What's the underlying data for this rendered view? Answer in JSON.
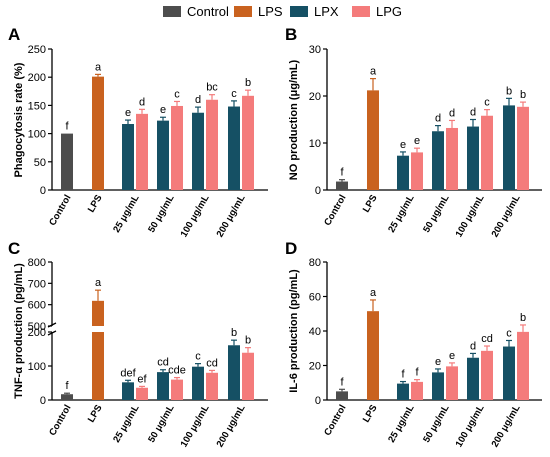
{
  "legend": [
    {
      "name": "Control",
      "color": "#4d4d4d"
    },
    {
      "name": "LPS",
      "color": "#c9621f"
    },
    {
      "name": "LPX",
      "color": "#155064"
    },
    {
      "name": "LPG",
      "color": "#f47b7b"
    }
  ],
  "chart_data": [
    {
      "panel": "A",
      "type": "bar",
      "ylabel": "Phagocytosis rate (%)",
      "ylim": [
        0,
        250
      ],
      "yticks": [
        0,
        50,
        100,
        150,
        200,
        250
      ],
      "categories": [
        "Control",
        "LPS",
        "25 μg/mL",
        "50 μg/mL",
        "100 μg/mL",
        "200 μg/mL"
      ],
      "groups": [
        [
          {
            "series": "Control",
            "value": 100,
            "err": 0,
            "sig": "f"
          }
        ],
        [
          {
            "series": "LPS",
            "value": 201,
            "err": 4,
            "sig": "a"
          }
        ],
        [
          {
            "series": "LPX",
            "value": 117,
            "err": 7,
            "sig": "e"
          },
          {
            "series": "LPG",
            "value": 135,
            "err": 8,
            "sig": "d"
          }
        ],
        [
          {
            "series": "LPX",
            "value": 123,
            "err": 6,
            "sig": "e"
          },
          {
            "series": "LPG",
            "value": 149,
            "err": 8,
            "sig": "c"
          }
        ],
        [
          {
            "series": "LPX",
            "value": 137,
            "err": 10,
            "sig": "d"
          },
          {
            "series": "LPG",
            "value": 160,
            "err": 9,
            "sig": "bc"
          }
        ],
        [
          {
            "series": "LPX",
            "value": 148,
            "err": 10,
            "sig": "c"
          },
          {
            "series": "LPG",
            "value": 167,
            "err": 10,
            "sig": "b"
          }
        ]
      ]
    },
    {
      "panel": "B",
      "type": "bar",
      "ylabel": "NO production (μg/mL)",
      "ylim": [
        0,
        30
      ],
      "yticks": [
        0,
        10,
        20,
        30
      ],
      "categories": [
        "Control",
        "LPS",
        "25 μg/mL",
        "50 μg/mL",
        "100 μg/mL",
        "200 μg/mL"
      ],
      "groups": [
        [
          {
            "series": "Control",
            "value": 1.8,
            "err": 0.4,
            "sig": "f"
          }
        ],
        [
          {
            "series": "LPS",
            "value": 21.2,
            "err": 2.5,
            "sig": "a"
          }
        ],
        [
          {
            "series": "LPX",
            "value": 7.3,
            "err": 0.8,
            "sig": "e"
          },
          {
            "series": "LPG",
            "value": 8.0,
            "err": 0.9,
            "sig": "e"
          }
        ],
        [
          {
            "series": "LPX",
            "value": 12.5,
            "err": 1.2,
            "sig": "d"
          },
          {
            "series": "LPG",
            "value": 13.2,
            "err": 1.6,
            "sig": "d"
          }
        ],
        [
          {
            "series": "LPX",
            "value": 13.5,
            "err": 1.5,
            "sig": "d"
          },
          {
            "series": "LPG",
            "value": 15.8,
            "err": 1.3,
            "sig": "c"
          }
        ],
        [
          {
            "series": "LPX",
            "value": 18.0,
            "err": 1.5,
            "sig": "b"
          },
          {
            "series": "LPG",
            "value": 17.7,
            "err": 1.0,
            "sig": "b"
          }
        ]
      ]
    },
    {
      "panel": "C",
      "type": "bar",
      "ylabel": "TNF-α production (pg/mL)",
      "broken_axis": true,
      "ylim_lower": [
        0,
        200
      ],
      "yticks_lower": [
        0,
        100,
        200
      ],
      "ylim_upper": [
        500,
        800
      ],
      "yticks_upper": [
        500,
        600,
        700,
        800
      ],
      "categories": [
        "Control",
        "LPS",
        "25 μg/mL",
        "50 μg/mL",
        "100 μg/mL",
        "200 μg/mL"
      ],
      "groups": [
        [
          {
            "series": "Control",
            "value": 17,
            "err": 3,
            "sig": "f"
          }
        ],
        [
          {
            "series": "LPS",
            "value": 618,
            "err": 50,
            "sig": "a"
          }
        ],
        [
          {
            "series": "LPX",
            "value": 52,
            "err": 6,
            "sig": "def"
          },
          {
            "series": "LPG",
            "value": 36,
            "err": 4,
            "sig": "ef"
          }
        ],
        [
          {
            "series": "LPX",
            "value": 82,
            "err": 7,
            "sig": "cd"
          },
          {
            "series": "LPG",
            "value": 60,
            "err": 6,
            "sig": "cde"
          }
        ],
        [
          {
            "series": "LPX",
            "value": 98,
            "err": 9,
            "sig": "c"
          },
          {
            "series": "LPG",
            "value": 80,
            "err": 7,
            "sig": "cd"
          }
        ],
        [
          {
            "series": "LPX",
            "value": 161,
            "err": 15,
            "sig": "b"
          },
          {
            "series": "LPG",
            "value": 139,
            "err": 15,
            "sig": "b"
          }
        ]
      ]
    },
    {
      "panel": "D",
      "type": "bar",
      "ylabel": "IL-6 production (pg/mL)",
      "ylim": [
        0,
        80
      ],
      "yticks": [
        0,
        20,
        40,
        60,
        80
      ],
      "categories": [
        "Control",
        "LPS",
        "25 μg/mL",
        "50 μg/mL",
        "100 μg/mL",
        "200 μg/mL"
      ],
      "groups": [
        [
          {
            "series": "Control",
            "value": 5,
            "err": 1.2,
            "sig": "f"
          }
        ],
        [
          {
            "series": "LPS",
            "value": 51.5,
            "err": 6.5,
            "sig": "a"
          }
        ],
        [
          {
            "series": "LPX",
            "value": 9.5,
            "err": 1.2,
            "sig": "f"
          },
          {
            "series": "LPG",
            "value": 10.5,
            "err": 1.3,
            "sig": "f"
          }
        ],
        [
          {
            "series": "LPX",
            "value": 16,
            "err": 2,
            "sig": "e"
          },
          {
            "series": "LPG",
            "value": 19.5,
            "err": 2,
            "sig": "e"
          }
        ],
        [
          {
            "series": "LPX",
            "value": 24.5,
            "err": 2.5,
            "sig": "d"
          },
          {
            "series": "LPG",
            "value": 28.5,
            "err": 2.8,
            "sig": "cd"
          }
        ],
        [
          {
            "series": "LPX",
            "value": 31,
            "err": 3.5,
            "sig": "c"
          },
          {
            "series": "LPG",
            "value": 39.5,
            "err": 4,
            "sig": "b"
          }
        ]
      ]
    }
  ]
}
